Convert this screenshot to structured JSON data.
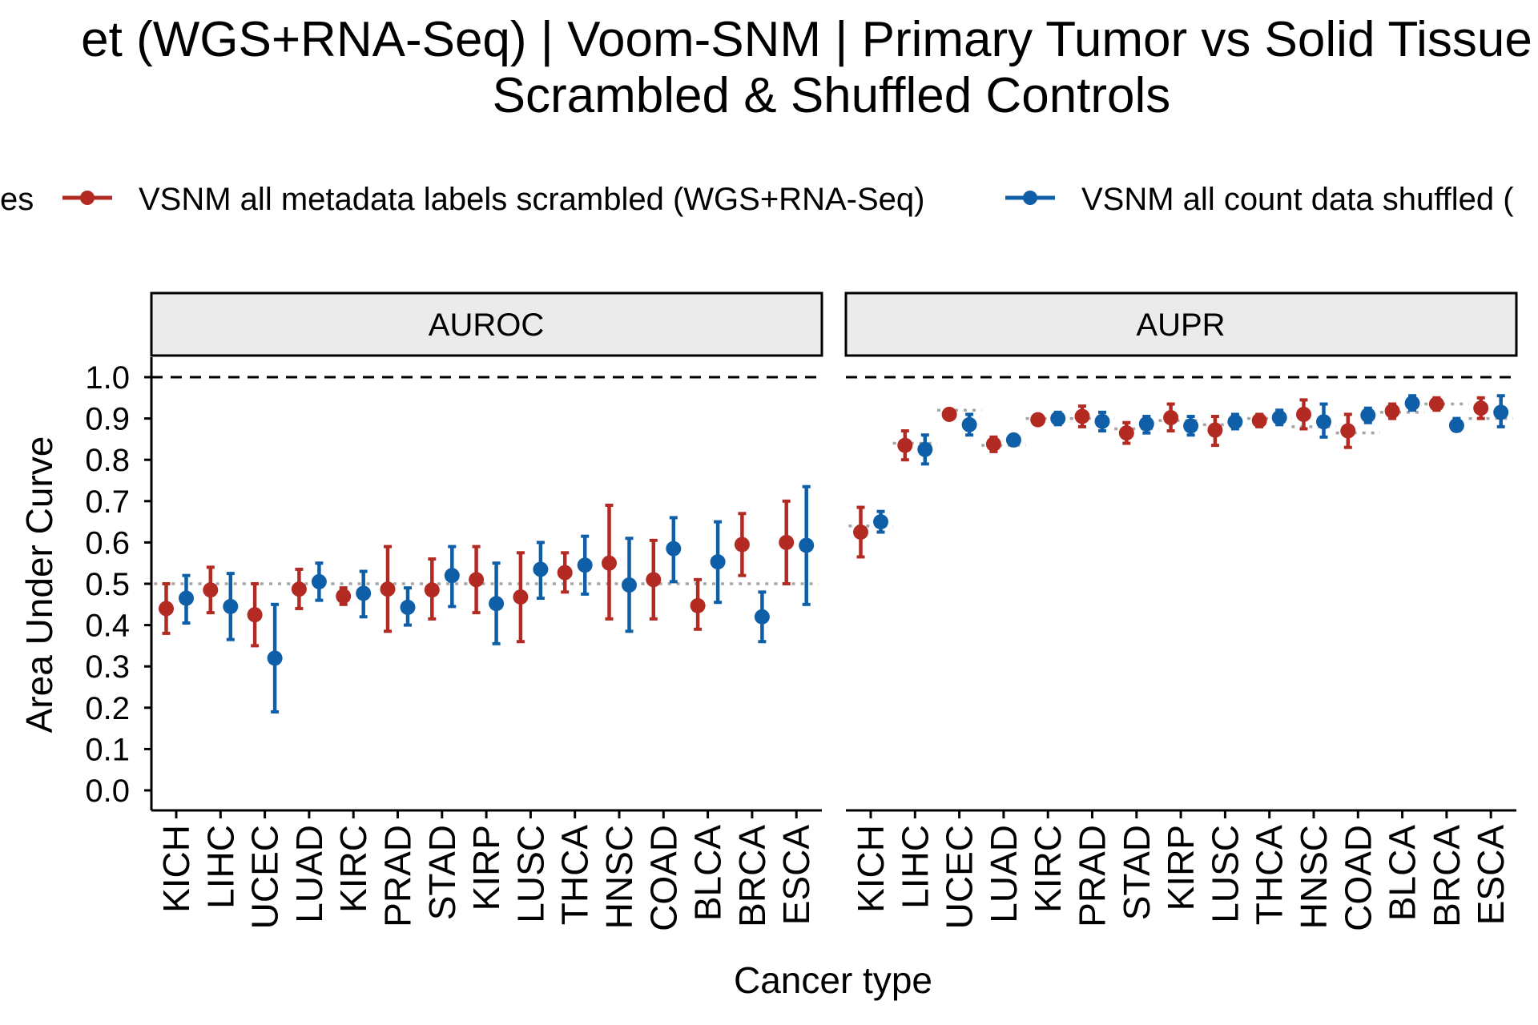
{
  "title": {
    "line1": "et (WGS+RNA-Seq) | Voom-SNM | Primary Tumor vs Solid Tissue N",
    "line2": "Scrambled & Shuffled Controls"
  },
  "legend": {
    "title": "es",
    "items": [
      {
        "label": "VSNM all metadata labels scrambled (WGS+RNA-Seq)",
        "color": "#B22A22"
      },
      {
        "label": "VSNM all count data shuffled (",
        "color": "#0F5FA8"
      }
    ]
  },
  "chart_data": {
    "type": "scatter",
    "subtype": "point-errorbar",
    "xlabel": "Cancer type",
    "ylabel": "Area Under Curve",
    "ylim": [
      0,
      1
    ],
    "yticks": [
      "0.0",
      "0.1",
      "0.2",
      "0.3",
      "0.4",
      "0.5",
      "0.6",
      "0.7",
      "0.8",
      "0.9",
      "1.0"
    ],
    "reference_line": 1.0,
    "grid": false,
    "legend_position": "top",
    "categories": [
      "KICH",
      "LIHC",
      "UCEC",
      "LUAD",
      "KIRC",
      "PRAD",
      "STAD",
      "KIRP",
      "LUSC",
      "THCA",
      "HNSC",
      "COAD",
      "BLCA",
      "BRCA",
      "ESCA"
    ],
    "panels": [
      {
        "name": "AUROC",
        "series": [
          {
            "name": "VSNM all metadata labels scrambled (WGS+RNA-Seq)",
            "color": "#B22A22",
            "mean": [
              0.44,
              0.485,
              0.425,
              0.487,
              0.47,
              0.487,
              0.485,
              0.51,
              0.468,
              0.527,
              0.55,
              0.51,
              0.447,
              0.595,
              0.6
            ],
            "lower": [
              0.38,
              0.43,
              0.35,
              0.44,
              0.45,
              0.385,
              0.415,
              0.43,
              0.36,
              0.48,
              0.415,
              0.415,
              0.39,
              0.52,
              0.5
            ],
            "upper": [
              0.5,
              0.54,
              0.5,
              0.535,
              0.49,
              0.59,
              0.56,
              0.59,
              0.575,
              0.575,
              0.69,
              0.605,
              0.51,
              0.67,
              0.7
            ],
            "baseline": [
              0.5,
              0.5,
              0.5,
              0.5,
              0.5,
              0.5,
              0.5,
              0.5,
              0.5,
              0.5,
              0.5,
              0.5,
              0.5,
              0.5,
              0.5
            ]
          },
          {
            "name": "VSNM all count data shuffled",
            "color": "#0F5FA8",
            "mean": [
              0.465,
              0.445,
              0.32,
              0.505,
              0.477,
              0.443,
              0.52,
              0.452,
              0.535,
              0.545,
              0.497,
              0.585,
              0.553,
              0.42,
              0.593
            ],
            "lower": [
              0.405,
              0.365,
              0.19,
              0.46,
              0.42,
              0.4,
              0.445,
              0.355,
              0.465,
              0.475,
              0.385,
              0.505,
              0.455,
              0.36,
              0.45
            ],
            "upper": [
              0.52,
              0.525,
              0.45,
              0.55,
              0.53,
              0.49,
              0.59,
              0.55,
              0.6,
              0.615,
              0.61,
              0.66,
              0.65,
              0.48,
              0.735
            ],
            "baseline": [
              0.5,
              0.5,
              0.5,
              0.5,
              0.5,
              0.5,
              0.5,
              0.5,
              0.5,
              0.5,
              0.5,
              0.5,
              0.5,
              0.5,
              0.5
            ]
          }
        ]
      },
      {
        "name": "AUPR",
        "series": [
          {
            "name": "VSNM all metadata labels scrambled (WGS+RNA-Seq)",
            "color": "#B22A22",
            "mean": [
              0.625,
              0.835,
              0.91,
              0.838,
              0.897,
              0.905,
              0.865,
              0.902,
              0.872,
              0.895,
              0.91,
              0.87,
              0.918,
              0.935,
              0.925
            ],
            "lower": [
              0.565,
              0.8,
              0.9,
              0.82,
              0.89,
              0.88,
              0.84,
              0.87,
              0.835,
              0.88,
              0.875,
              0.83,
              0.9,
              0.92,
              0.9
            ],
            "upper": [
              0.685,
              0.87,
              0.92,
              0.855,
              0.905,
              0.93,
              0.89,
              0.935,
              0.905,
              0.91,
              0.945,
              0.91,
              0.935,
              0.95,
              0.95
            ],
            "baseline": [
              0.64,
              0.84,
              0.92,
              0.835,
              0.9,
              0.9,
              0.875,
              0.895,
              0.885,
              0.9,
              0.88,
              0.865,
              0.915,
              0.935,
              0.9
            ]
          },
          {
            "name": "VSNM all count data shuffled",
            "color": "#0F5FA8",
            "mean": [
              0.65,
              0.825,
              0.885,
              0.848,
              0.9,
              0.893,
              0.887,
              0.882,
              0.892,
              0.902,
              0.892,
              0.908,
              0.937,
              0.883,
              0.915
            ],
            "lower": [
              0.625,
              0.79,
              0.86,
              0.84,
              0.885,
              0.87,
              0.865,
              0.86,
              0.875,
              0.885,
              0.855,
              0.89,
              0.92,
              0.87,
              0.88
            ],
            "upper": [
              0.675,
              0.86,
              0.91,
              0.855,
              0.915,
              0.915,
              0.905,
              0.905,
              0.91,
              0.92,
              0.935,
              0.925,
              0.955,
              0.9,
              0.955
            ],
            "baseline": [
              0.64,
              0.84,
              0.92,
              0.835,
              0.9,
              0.9,
              0.875,
              0.895,
              0.885,
              0.9,
              0.88,
              0.865,
              0.915,
              0.935,
              0.9
            ]
          }
        ]
      }
    ]
  }
}
